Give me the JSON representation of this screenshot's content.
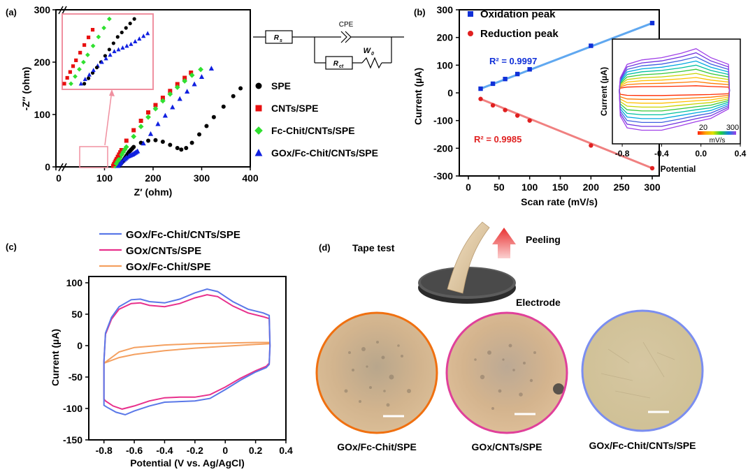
{
  "panels": {
    "a": {
      "panel_label": "(a)",
      "circuit": {
        "rs": "R",
        "rs_sub": "s",
        "cpe": "CPE",
        "rct": "R",
        "rct_sub": "ct",
        "w": "W",
        "w_sub": "0"
      }
    },
    "b": {
      "panel_label": "(b)",
      "r2_ox": "R² = 0.9997",
      "r2_red": "R² = 0.9985",
      "inset": {
        "ylabel": "Current (µA)",
        "xlabel": "Potential",
        "x_ticks": [
          "-0.8",
          "-0.4",
          "0.0",
          "0.4"
        ],
        "colorbar_min": "20",
        "colorbar_max": "300",
        "colorbar_unit": "mV/s",
        "colors": [
          "#ff2a00",
          "#ff7a00",
          "#ffc000",
          "#c8d400",
          "#38c838",
          "#00c0a0",
          "#00a8e0",
          "#4060e0",
          "#7030e0",
          "#a040e8"
        ]
      }
    },
    "c": {
      "panel_label": "(c)"
    },
    "d": {
      "panel_label": "(d)",
      "tape_test": "Tape test",
      "peeling": "Peeling",
      "electrode": "Electrode",
      "images": [
        {
          "label": "GOx/Fc-Chit/SPE",
          "border": "#f07010",
          "fill": "#d6b48a"
        },
        {
          "label": "GOx/CNTs/SPE",
          "border": "#e0409a",
          "fill": "#d4b28c"
        },
        {
          "label": "GOx/Fc-Chit/CNTs/SPE",
          "border": "#7b8ef0",
          "fill": "#d2c29a"
        }
      ]
    }
  },
  "chart_data": [
    {
      "type": "scatter",
      "id": "a",
      "xlabel": "Z′ (ohm)",
      "ylabel": "-Z″ (ohm)",
      "xlim": [
        0,
        400
      ],
      "ylim": [
        0,
        300
      ],
      "x_ticks": [
        0,
        100,
        200,
        300,
        400
      ],
      "y_ticks": [
        0,
        100,
        200,
        300
      ],
      "legend_position": "right",
      "series": [
        {
          "name": "SPE",
          "color": "#000000",
          "marker": "circle",
          "points": [
            [
              130,
              2
            ],
            [
              140,
              14
            ],
            [
              150,
              28
            ],
            [
              160,
              38
            ],
            [
              175,
              46
            ],
            [
              190,
              50
            ],
            [
              205,
              51
            ],
            [
              220,
              48
            ],
            [
              235,
              42
            ],
            [
              250,
              36
            ],
            [
              258,
              33
            ],
            [
              268,
              36
            ],
            [
              280,
              46
            ],
            [
              295,
              62
            ],
            [
              310,
              78
            ],
            [
              325,
              95
            ],
            [
              345,
              115
            ],
            [
              365,
              135
            ],
            [
              380,
              150
            ]
          ]
        },
        {
          "name": "CNTs/SPE",
          "color": "#e81010",
          "marker": "square",
          "points": [
            [
              118,
              2
            ],
            [
              125,
              15
            ],
            [
              135,
              32
            ],
            [
              145,
              50
            ],
            [
              160,
              70
            ],
            [
              175,
              88
            ],
            [
              190,
              104
            ],
            [
              205,
              118
            ],
            [
              220,
              132
            ],
            [
              235,
              145
            ],
            [
              250,
              158
            ],
            [
              265,
              170
            ],
            [
              278,
              180
            ]
          ]
        },
        {
          "name": "Fc-Chit/CNTs/SPE",
          "color": "#30e030",
          "marker": "diamond",
          "points": [
            [
              122,
              2
            ],
            [
              132,
              18
            ],
            [
              145,
              38
            ],
            [
              160,
              58
            ],
            [
              175,
              77
            ],
            [
              190,
              95
            ],
            [
              205,
              111
            ],
            [
              220,
              126
            ],
            [
              235,
              139
            ],
            [
              250,
              152
            ],
            [
              265,
              164
            ],
            [
              280,
              175
            ],
            [
              298,
              186
            ]
          ]
        },
        {
          "name": "GOx/Fc-Chit/CNTs/SPE",
          "color": "#1020e0",
          "marker": "triangle",
          "points": [
            [
              128,
              2
            ],
            [
              138,
              12
            ],
            [
              148,
              20
            ],
            [
              158,
              24
            ],
            [
              168,
              30
            ],
            [
              180,
              45
            ],
            [
              195,
              63
            ],
            [
              210,
              82
            ],
            [
              225,
              98
            ],
            [
              240,
              114
            ],
            [
              255,
              130
            ],
            [
              270,
              144
            ],
            [
              285,
              158
            ],
            [
              300,
              172
            ],
            [
              320,
              188
            ]
          ]
        }
      ]
    },
    {
      "type": "scatter",
      "id": "b",
      "xlabel": "Scan rate (mV/s)",
      "ylabel": "Current (µA)",
      "xlim": [
        0,
        300
      ],
      "ylim": [
        -300,
        300
      ],
      "x_ticks": [
        0,
        50,
        100,
        150,
        200,
        250,
        300
      ],
      "y_ticks": [
        -300,
        -200,
        -100,
        0,
        100,
        200,
        300
      ],
      "legend_position": "top-left",
      "series": [
        {
          "name": "Oxidation peak",
          "color": "#1030d8",
          "line_color": "#60a8f0",
          "marker": "square",
          "x": [
            20,
            40,
            60,
            80,
            100,
            200,
            300
          ],
          "y": [
            15,
            33,
            50,
            68,
            85,
            170,
            252
          ]
        },
        {
          "name": "Reduction peak",
          "color": "#e02020",
          "line_color": "#f08080",
          "marker": "circle",
          "x": [
            20,
            40,
            60,
            80,
            100,
            200,
            300
          ],
          "y": [
            -22,
            -45,
            -62,
            -82,
            -100,
            -190,
            -272
          ]
        }
      ]
    },
    {
      "type": "line",
      "id": "c",
      "xlabel": "Potential (V vs. Ag/AgCl)",
      "ylabel": "Current (µA)",
      "xlim": [
        -0.9,
        0.4
      ],
      "ylim": [
        -150,
        110
      ],
      "x_ticks": [
        -0.8,
        -0.6,
        -0.4,
        -0.2,
        0.0,
        0.2,
        0.4
      ],
      "y_ticks": [
        -150,
        -100,
        -50,
        0,
        50,
        100
      ],
      "legend_position": "top",
      "series": [
        {
          "name": "GOx/Fc-Chit/CNTs/SPE",
          "color": "#5a78e8",
          "points": [
            [
              -0.8,
              -25
            ],
            [
              -0.79,
              20
            ],
            [
              -0.75,
              45
            ],
            [
              -0.7,
              62
            ],
            [
              -0.62,
              73
            ],
            [
              -0.56,
              74
            ],
            [
              -0.5,
              70
            ],
            [
              -0.4,
              68
            ],
            [
              -0.3,
              74
            ],
            [
              -0.2,
              84
            ],
            [
              -0.12,
              90
            ],
            [
              -0.05,
              86
            ],
            [
              0.05,
              70
            ],
            [
              0.15,
              58
            ],
            [
              0.25,
              52
            ],
            [
              0.29,
              48
            ],
            [
              0.295,
              0
            ],
            [
              0.29,
              -30
            ],
            [
              0.27,
              -35
            ],
            [
              0.2,
              -42
            ],
            [
              0.1,
              -55
            ],
            [
              0.0,
              -70
            ],
            [
              -0.1,
              -84
            ],
            [
              -0.2,
              -88
            ],
            [
              -0.3,
              -89
            ],
            [
              -0.4,
              -90
            ],
            [
              -0.5,
              -96
            ],
            [
              -0.6,
              -104
            ],
            [
              -0.66,
              -110
            ],
            [
              -0.72,
              -106
            ],
            [
              -0.78,
              -98
            ],
            [
              -0.8,
              -95
            ],
            [
              -0.8,
              -25
            ]
          ]
        },
        {
          "name": "GOx/CNTs/SPE",
          "color": "#e8308c",
          "points": [
            [
              -0.8,
              -25
            ],
            [
              -0.79,
              18
            ],
            [
              -0.75,
              42
            ],
            [
              -0.7,
              58
            ],
            [
              -0.62,
              67
            ],
            [
              -0.56,
              68
            ],
            [
              -0.5,
              64
            ],
            [
              -0.4,
              62
            ],
            [
              -0.3,
              67
            ],
            [
              -0.2,
              76
            ],
            [
              -0.12,
              81
            ],
            [
              -0.05,
              78
            ],
            [
              0.05,
              63
            ],
            [
              0.15,
              52
            ],
            [
              0.25,
              46
            ],
            [
              0.29,
              43
            ],
            [
              0.295,
              0
            ],
            [
              0.29,
              -28
            ],
            [
              0.27,
              -33
            ],
            [
              0.2,
              -40
            ],
            [
              0.1,
              -52
            ],
            [
              0.0,
              -66
            ],
            [
              -0.1,
              -78
            ],
            [
              -0.2,
              -82
            ],
            [
              -0.3,
              -82
            ],
            [
              -0.4,
              -83
            ],
            [
              -0.5,
              -88
            ],
            [
              -0.6,
              -96
            ],
            [
              -0.68,
              -101
            ],
            [
              -0.74,
              -96
            ],
            [
              -0.79,
              -88
            ],
            [
              -0.8,
              -85
            ],
            [
              -0.8,
              -25
            ]
          ]
        },
        {
          "name": "GOx/Fc-Chit/SPE",
          "color": "#f4a060",
          "points": [
            [
              -0.8,
              -28
            ],
            [
              -0.7,
              -10
            ],
            [
              -0.6,
              -3
            ],
            [
              -0.4,
              1
            ],
            [
              -0.2,
              3
            ],
            [
              0.0,
              4
            ],
            [
              0.2,
              5
            ],
            [
              0.29,
              5
            ],
            [
              0.29,
              3
            ],
            [
              0.2,
              2
            ],
            [
              0.0,
              -1
            ],
            [
              -0.2,
              -4
            ],
            [
              -0.4,
              -8
            ],
            [
              -0.6,
              -14
            ],
            [
              -0.7,
              -19
            ],
            [
              -0.8,
              -28
            ]
          ]
        }
      ]
    }
  ]
}
